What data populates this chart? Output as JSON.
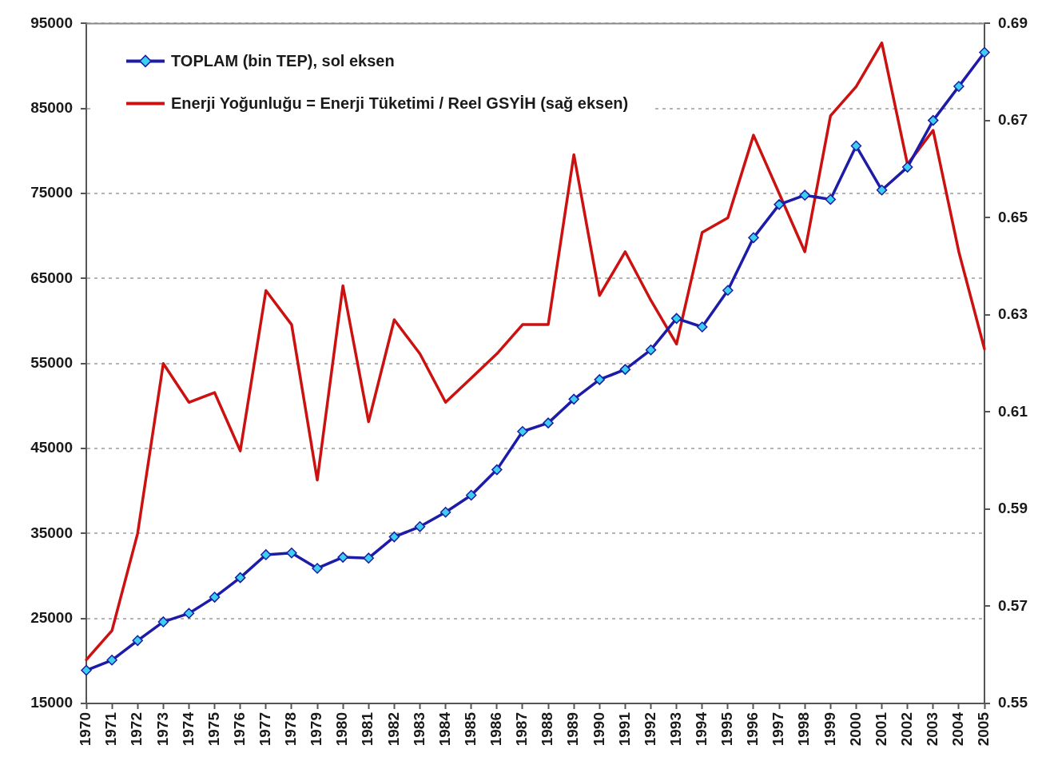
{
  "chart_data": {
    "type": "line",
    "categories": [
      "1970",
      "1971",
      "1972",
      "1973",
      "1974",
      "1975",
      "1976",
      "1977",
      "1978",
      "1979",
      "1980",
      "1981",
      "1982",
      "1983",
      "1984",
      "1985",
      "1986",
      "1987",
      "1988",
      "1989",
      "1990",
      "1991",
      "1992",
      "1993",
      "1994",
      "1995",
      "1996",
      "1997",
      "1998",
      "1999",
      "2000",
      "2001",
      "2002",
      "2003",
      "2004",
      "2005"
    ],
    "series": [
      {
        "name": "TOPLAM (bin TEP), sol eksen",
        "color": "#1c1ca8",
        "marker": "diamond",
        "values": [
          18900,
          20100,
          22400,
          24600,
          25600,
          27500,
          29800,
          32500,
          32700,
          30900,
          32200,
          32100,
          34600,
          35800,
          37500,
          39500,
          42500,
          47000,
          48000,
          50800,
          53100,
          54300,
          56600,
          60300,
          59300,
          63600,
          69800,
          73700,
          74800,
          74300,
          80600,
          75400,
          78100,
          83600,
          87600,
          91600
        ]
      },
      {
        "name": "Enerji Yoğunluğu = Enerji Tüketimi / Reel GSYİH (sağ eksen)",
        "color": "#cc1111",
        "axis": "y2",
        "marker": "none",
        "values": [
          0.559,
          0.565,
          0.585,
          0.62,
          0.612,
          0.614,
          0.602,
          0.635,
          0.628,
          0.596,
          0.636,
          0.608,
          0.629,
          0.622,
          0.612,
          0.617,
          0.622,
          0.628,
          0.628,
          0.663,
          0.634,
          0.643,
          0.633,
          0.624,
          0.647,
          0.65,
          0.667,
          0.655,
          0.643,
          0.671,
          0.677,
          0.686,
          0.661,
          0.668,
          0.643,
          0.623
        ]
      }
    ],
    "ylim": [
      15000,
      95000
    ],
    "yticks": [
      15000,
      25000,
      35000,
      45000,
      55000,
      65000,
      75000,
      85000,
      95000
    ],
    "y2lim": [
      0.55,
      0.69
    ],
    "y2ticks": [
      0.55,
      0.57,
      0.59,
      0.61,
      0.63,
      0.65,
      0.67,
      0.69
    ],
    "grid": "y",
    "legend": "top left"
  }
}
